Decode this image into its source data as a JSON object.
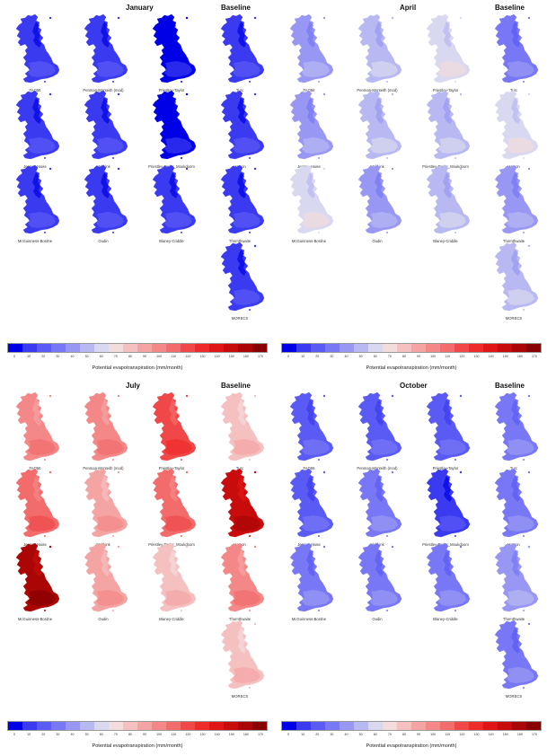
{
  "legend": {
    "title": "Potential evapotranspiration (mm/month)",
    "ticks": [
      "0",
      "10",
      "20",
      "30",
      "40",
      "50",
      "60",
      "70",
      "80",
      "90",
      "100",
      "110",
      "120",
      "130",
      "140",
      "150",
      "160",
      "170"
    ],
    "colors": [
      "#0000e6",
      "#3a3af0",
      "#5a5af5",
      "#7878f6",
      "#9898f4",
      "#b8b8f2",
      "#d8d8f0",
      "#f2dcdc",
      "#f5c0c0",
      "#f5a4a4",
      "#f48888",
      "#f26c6c",
      "#f04848",
      "#ee2a2a",
      "#e01616",
      "#c80c0c",
      "#aa0606",
      "#880000"
    ]
  },
  "panels": [
    {
      "title": "January",
      "subtitle": "Baseline",
      "maps": [
        {
          "label": "FAO56",
          "value": 12
        },
        {
          "label": "Penman-Monteith (mod)",
          "value": 11
        },
        {
          "label": "Priestley-Taylor",
          "value": 2
        },
        {
          "label": "Turc",
          "value": 14
        },
        {
          "label": "Jensen-Haise",
          "value": 13
        },
        {
          "label": "Makkink",
          "value": 12
        },
        {
          "label": "Priestley-Taylor_Moukdoom",
          "value": 1
        },
        {
          "label": "Hamon",
          "value": 15
        },
        {
          "label": "McGuinness-Bordne",
          "value": 13
        },
        {
          "label": "Oudin",
          "value": 12
        },
        {
          "label": "Blaney-Criddle",
          "value": 16
        },
        {
          "label": "Thornthwaite",
          "value": 16
        },
        {
          "label": "MORECS",
          "value": 16
        }
      ]
    },
    {
      "title": "April",
      "subtitle": "Baseline",
      "maps": [
        {
          "label": "FAO56",
          "value": 44
        },
        {
          "label": "Penman-Monteith (mod)",
          "value": 52
        },
        {
          "label": "Priestley-Taylor",
          "value": 60
        },
        {
          "label": "Turc",
          "value": 38
        },
        {
          "label": "Jensen-Haise",
          "value": 42
        },
        {
          "label": "Makkink",
          "value": 52
        },
        {
          "label": "Priestley-Taylor_Moukdoom",
          "value": 54
        },
        {
          "label": "Hamon",
          "value": 64
        },
        {
          "label": "McGuinness-Bordne",
          "value": 65
        },
        {
          "label": "Oudin",
          "value": 44
        },
        {
          "label": "Blaney-Criddle",
          "value": 52
        },
        {
          "label": "Thornthwaite",
          "value": 42
        },
        {
          "label": "MORECS",
          "value": 53
        }
      ]
    },
    {
      "title": "July",
      "subtitle": "Baseline",
      "maps": [
        {
          "label": "FAO56",
          "value": 104
        },
        {
          "label": "Penman-Monteith (mod)",
          "value": 104
        },
        {
          "label": "Priestley-Taylor",
          "value": 124
        },
        {
          "label": "Turc",
          "value": 82
        },
        {
          "label": "Jensen-Haise",
          "value": 118
        },
        {
          "label": "Makkink",
          "value": 94
        },
        {
          "label": "Priestley-Taylor_Moukdoom",
          "value": 112
        },
        {
          "label": "Hamon",
          "value": 150
        },
        {
          "label": "McGuinness-Bordne",
          "value": 160
        },
        {
          "label": "Oudin",
          "value": 98
        },
        {
          "label": "Blaney-Criddle",
          "value": 88
        },
        {
          "label": "Thornthwaite",
          "value": 106
        },
        {
          "label": "MORECS",
          "value": 86
        }
      ]
    },
    {
      "title": "October",
      "subtitle": "Baseline",
      "maps": [
        {
          "label": "FAO56",
          "value": 28
        },
        {
          "label": "Penman-Monteith (mod)",
          "value": 26
        },
        {
          "label": "Priestley-Taylor",
          "value": 22
        },
        {
          "label": "Turc",
          "value": 30
        },
        {
          "label": "Jensen-Haise",
          "value": 26
        },
        {
          "label": "Makkink",
          "value": 34
        },
        {
          "label": "Priestley-Taylor_Moukdoom",
          "value": 14
        },
        {
          "label": "Hamon",
          "value": 38
        },
        {
          "label": "McGuinness-Bordne",
          "value": 36
        },
        {
          "label": "Oudin",
          "value": 32
        },
        {
          "label": "Blaney-Criddle",
          "value": 34
        },
        {
          "label": "Thornthwaite",
          "value": 40
        },
        {
          "label": "MORECS",
          "value": 30
        }
      ]
    }
  ]
}
